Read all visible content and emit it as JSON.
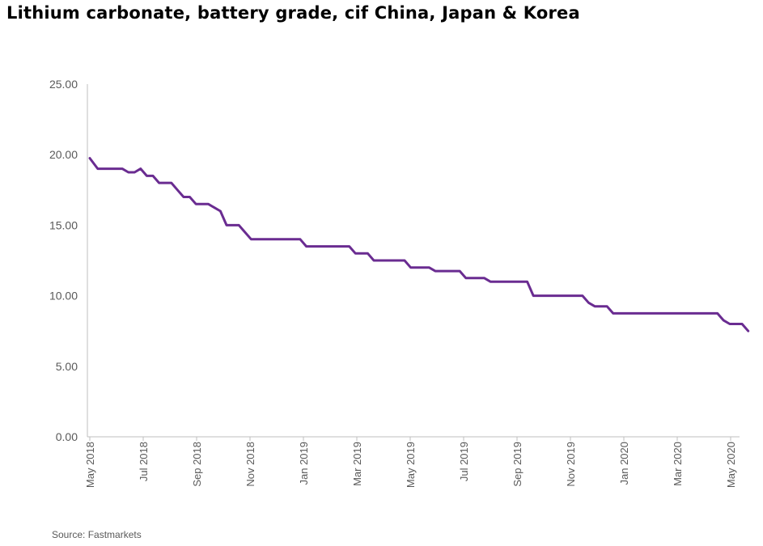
{
  "chart_data": {
    "type": "line",
    "title": "Lithium carbonate, battery grade, cif China, Japan & Korea",
    "source": "Source: Fastmarkets",
    "xlabel": "",
    "ylabel": "",
    "ylim": [
      0,
      25
    ],
    "y_ticks": [
      "0.00",
      "5.00",
      "10.00",
      "15.00",
      "20.00",
      "25.00"
    ],
    "x_ticks": [
      "May 2018",
      "Jul 2018",
      "Sep 2018",
      "Nov 2018",
      "Jan 2019",
      "Mar 2019",
      "May 2019",
      "Jul 2019",
      "Sep 2019",
      "Nov 2019",
      "Jan 2020",
      "Mar 2020",
      "May 2020"
    ],
    "grid": false,
    "legend": "none",
    "line_color": "#6a2c91",
    "series": [
      {
        "x": [
          "2018-05-01",
          "2018-05-10",
          "2018-05-17",
          "2018-05-24",
          "2018-05-31",
          "2018-06-07",
          "2018-06-14",
          "2018-06-21",
          "2018-06-28",
          "2018-07-05",
          "2018-07-12",
          "2018-07-19",
          "2018-07-26",
          "2018-08-02",
          "2018-08-09",
          "2018-08-16",
          "2018-08-23",
          "2018-08-30",
          "2018-09-06",
          "2018-09-13",
          "2018-09-20",
          "2018-09-27",
          "2018-10-04",
          "2018-10-11",
          "2018-10-18",
          "2018-10-25",
          "2018-11-01",
          "2018-11-08",
          "2018-11-15",
          "2018-11-22",
          "2018-11-29",
          "2018-12-06",
          "2018-12-13",
          "2018-12-20",
          "2018-12-27",
          "2019-01-03",
          "2019-01-10",
          "2019-01-17",
          "2019-01-24",
          "2019-01-31",
          "2019-02-07",
          "2019-02-14",
          "2019-02-21",
          "2019-02-28",
          "2019-03-07",
          "2019-03-14",
          "2019-03-21",
          "2019-03-28",
          "2019-04-04",
          "2019-04-11",
          "2019-04-18",
          "2019-04-25",
          "2019-05-02",
          "2019-05-09",
          "2019-05-16",
          "2019-05-23",
          "2019-05-30",
          "2019-06-06",
          "2019-06-13",
          "2019-06-20",
          "2019-06-27",
          "2019-07-04",
          "2019-07-11",
          "2019-07-18",
          "2019-07-25",
          "2019-08-01",
          "2019-08-08",
          "2019-08-15",
          "2019-08-22",
          "2019-08-29",
          "2019-09-05",
          "2019-09-12",
          "2019-09-19",
          "2019-09-26",
          "2019-10-03",
          "2019-10-10",
          "2019-10-17",
          "2019-10-24",
          "2019-10-31",
          "2019-11-07",
          "2019-11-14",
          "2019-11-21",
          "2019-11-28",
          "2019-12-05",
          "2019-12-12",
          "2019-12-19",
          "2019-12-26",
          "2020-01-02",
          "2020-01-09",
          "2020-01-16",
          "2020-01-23",
          "2020-01-30",
          "2020-02-06",
          "2020-02-13",
          "2020-02-20",
          "2020-02-27",
          "2020-03-05",
          "2020-03-12",
          "2020-03-19",
          "2020-03-26",
          "2020-04-02",
          "2020-04-09",
          "2020-04-16",
          "2020-04-23",
          "2020-04-30",
          "2020-05-07",
          "2020-05-14",
          "2020-05-21"
        ],
        "values": [
          19.75,
          19.0,
          19.0,
          19.0,
          19.0,
          19.0,
          18.75,
          18.75,
          19.0,
          18.5,
          18.5,
          18.0,
          18.0,
          18.0,
          17.5,
          17.0,
          17.0,
          16.5,
          16.5,
          16.5,
          16.25,
          16.0,
          15.0,
          15.0,
          15.0,
          14.5,
          14.0,
          14.0,
          14.0,
          14.0,
          14.0,
          14.0,
          14.0,
          14.0,
          14.0,
          13.5,
          13.5,
          13.5,
          13.5,
          13.5,
          13.5,
          13.5,
          13.5,
          13.0,
          13.0,
          13.0,
          12.5,
          12.5,
          12.5,
          12.5,
          12.5,
          12.5,
          12.0,
          12.0,
          12.0,
          12.0,
          11.75,
          11.75,
          11.75,
          11.75,
          11.75,
          11.25,
          11.25,
          11.25,
          11.25,
          11.0,
          11.0,
          11.0,
          11.0,
          11.0,
          11.0,
          11.0,
          10.0,
          10.0,
          10.0,
          10.0,
          10.0,
          10.0,
          10.0,
          10.0,
          10.0,
          9.5,
          9.25,
          9.25,
          9.25,
          8.75,
          8.75,
          8.75,
          8.75,
          8.75,
          8.75,
          8.75,
          8.75,
          8.75,
          8.75,
          8.75,
          8.75,
          8.75,
          8.75,
          8.75,
          8.75,
          8.75,
          8.75,
          8.25,
          8.0,
          8.0,
          8.0,
          7.5
        ]
      }
    ]
  }
}
